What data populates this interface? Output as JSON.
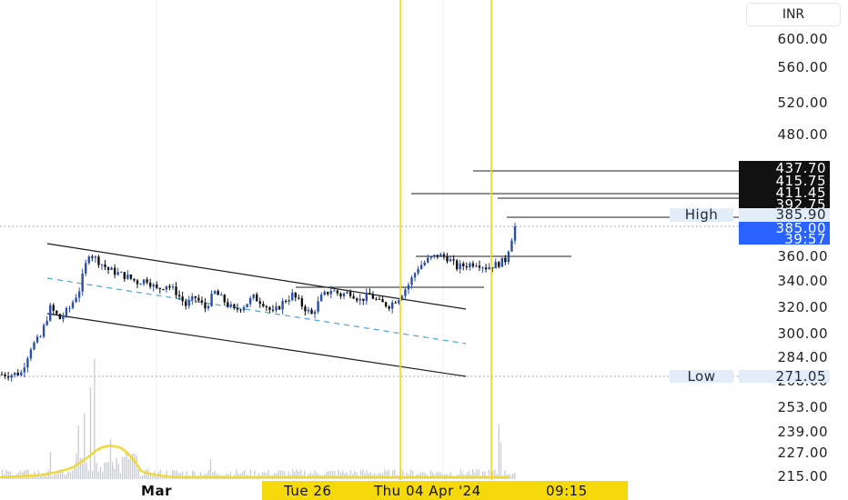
{
  "header": {
    "currency_label": "INR"
  },
  "colors": {
    "candle": "#2b4ea8",
    "price_tag": "#2962ff",
    "highlight": "#f5d90a",
    "volume": "#c9cbd2",
    "volume_ma": "#f0d83a",
    "channel": "#1c1c1c",
    "midline": "#4aa3e0",
    "label_bg": "#e3ecf9",
    "dark_tag": "#111111"
  },
  "price_axis": {
    "ticks": [
      "600.00",
      "560.00",
      "520.00",
      "480.00",
      "360.00",
      "340.00",
      "320.00",
      "300.00",
      "284.00",
      "268.00",
      "253.00",
      "239.00",
      "227.00",
      "215.00"
    ],
    "price_labels": [
      {
        "value": "437.70",
        "style": "dark"
      },
      {
        "value": "415.75",
        "style": "dark"
      },
      {
        "value": "411.45",
        "style": "dark"
      },
      {
        "value": "392.75",
        "style": "dark"
      },
      {
        "value": "385.90",
        "style": "light",
        "tag": "High"
      },
      {
        "value": "271.05",
        "style": "light",
        "tag": "Low"
      }
    ],
    "current": {
      "price": "385.00",
      "countdown": "39:57"
    }
  },
  "time_axis": {
    "month_label": "Mar",
    "crosshair_labels": [
      "Tue 26",
      "Thu 04 Apr '24",
      "09:15"
    ]
  },
  "chart_data": {
    "type": "candlestick",
    "y_scale": "log",
    "ylim": [
      210,
      620
    ],
    "high": 385.9,
    "low": 271.05,
    "last_price": 385.0,
    "levels": [
      437.7,
      415.75,
      411.45,
      392.75
    ],
    "resistance_lines": [
      360,
      336
    ],
    "approx_close_path": [
      272,
      272,
      273,
      290,
      297,
      318,
      310,
      318,
      332,
      362,
      355,
      348,
      345,
      342,
      338,
      340,
      332,
      336,
      330,
      320,
      326,
      318,
      330,
      323,
      316,
      320,
      326,
      322,
      314,
      322,
      328,
      320,
      313,
      326,
      332,
      328,
      330,
      324,
      328,
      322,
      320,
      326,
      336,
      350,
      356,
      360,
      358,
      350,
      352,
      354,
      350,
      352,
      356,
      385
    ]
  }
}
